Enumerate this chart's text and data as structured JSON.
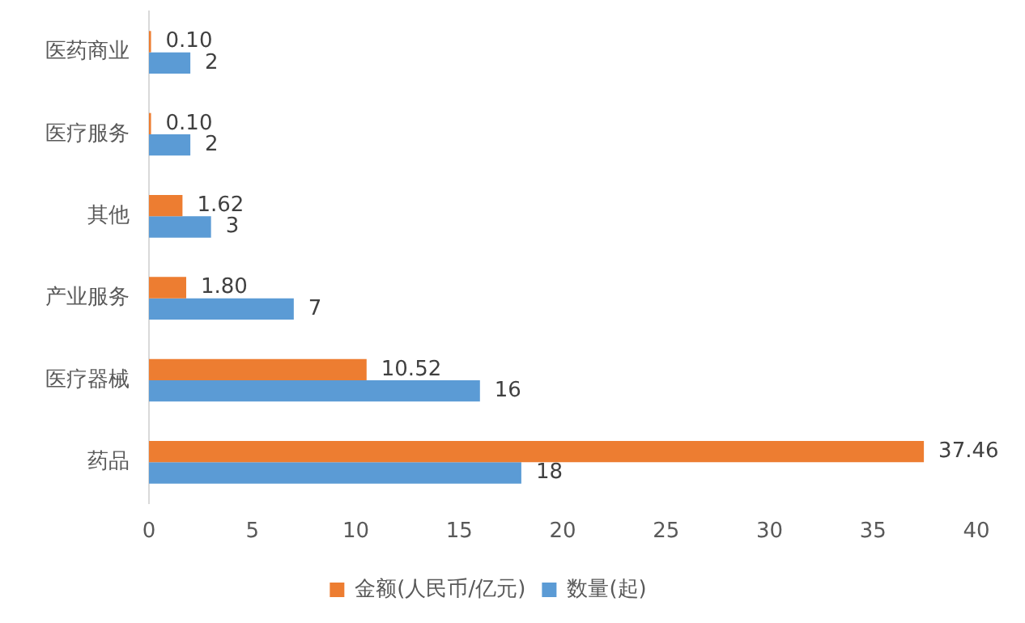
{
  "chart_data": {
    "type": "bar",
    "orientation": "horizontal",
    "categories": [
      "医药商业",
      "医疗服务",
      "其他",
      "产业服务",
      "医疗器械",
      "药品"
    ],
    "series": [
      {
        "name": "金额(人民币/亿元)",
        "color": "#ed7d31",
        "values": [
          0.1,
          0.1,
          1.62,
          1.8,
          10.52,
          37.46
        ],
        "value_labels": [
          "0.10",
          "0.10",
          "1.62",
          "1.80",
          "10.52",
          "37.46"
        ]
      },
      {
        "name": "数量(起)",
        "color": "#5b9bd5",
        "values": [
          2,
          2,
          3,
          7,
          16,
          18
        ],
        "value_labels": [
          "2",
          "2",
          "3",
          "7",
          "16",
          "18"
        ]
      }
    ],
    "xlim": [
      0,
      40
    ],
    "xticks": [
      0,
      5,
      10,
      15,
      20,
      25,
      30,
      35,
      40
    ],
    "legend": "bottom",
    "grid": false
  }
}
